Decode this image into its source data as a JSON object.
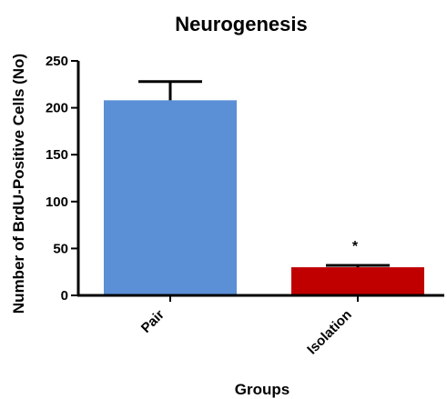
{
  "chart_data": {
    "type": "bar",
    "title": "Neurogenesis",
    "xlabel": "Groups",
    "ylabel": "Number of BrdU-Positive Cells (No)",
    "categories": [
      "Pair",
      "Isolation"
    ],
    "values": [
      208,
      30
    ],
    "error_bars": [
      20,
      2
    ],
    "annotations": [
      "",
      "*"
    ],
    "ylim": [
      0,
      250
    ],
    "yticks": [
      0,
      50,
      100,
      150,
      200,
      250
    ],
    "ytick_labels": [
      "0",
      "50",
      "100",
      "150",
      "200",
      "250"
    ],
    "grid": false,
    "legend": "none",
    "colors": {
      "bars": [
        "#5B8FD6",
        "#C00000"
      ],
      "axis": "#000000"
    }
  }
}
